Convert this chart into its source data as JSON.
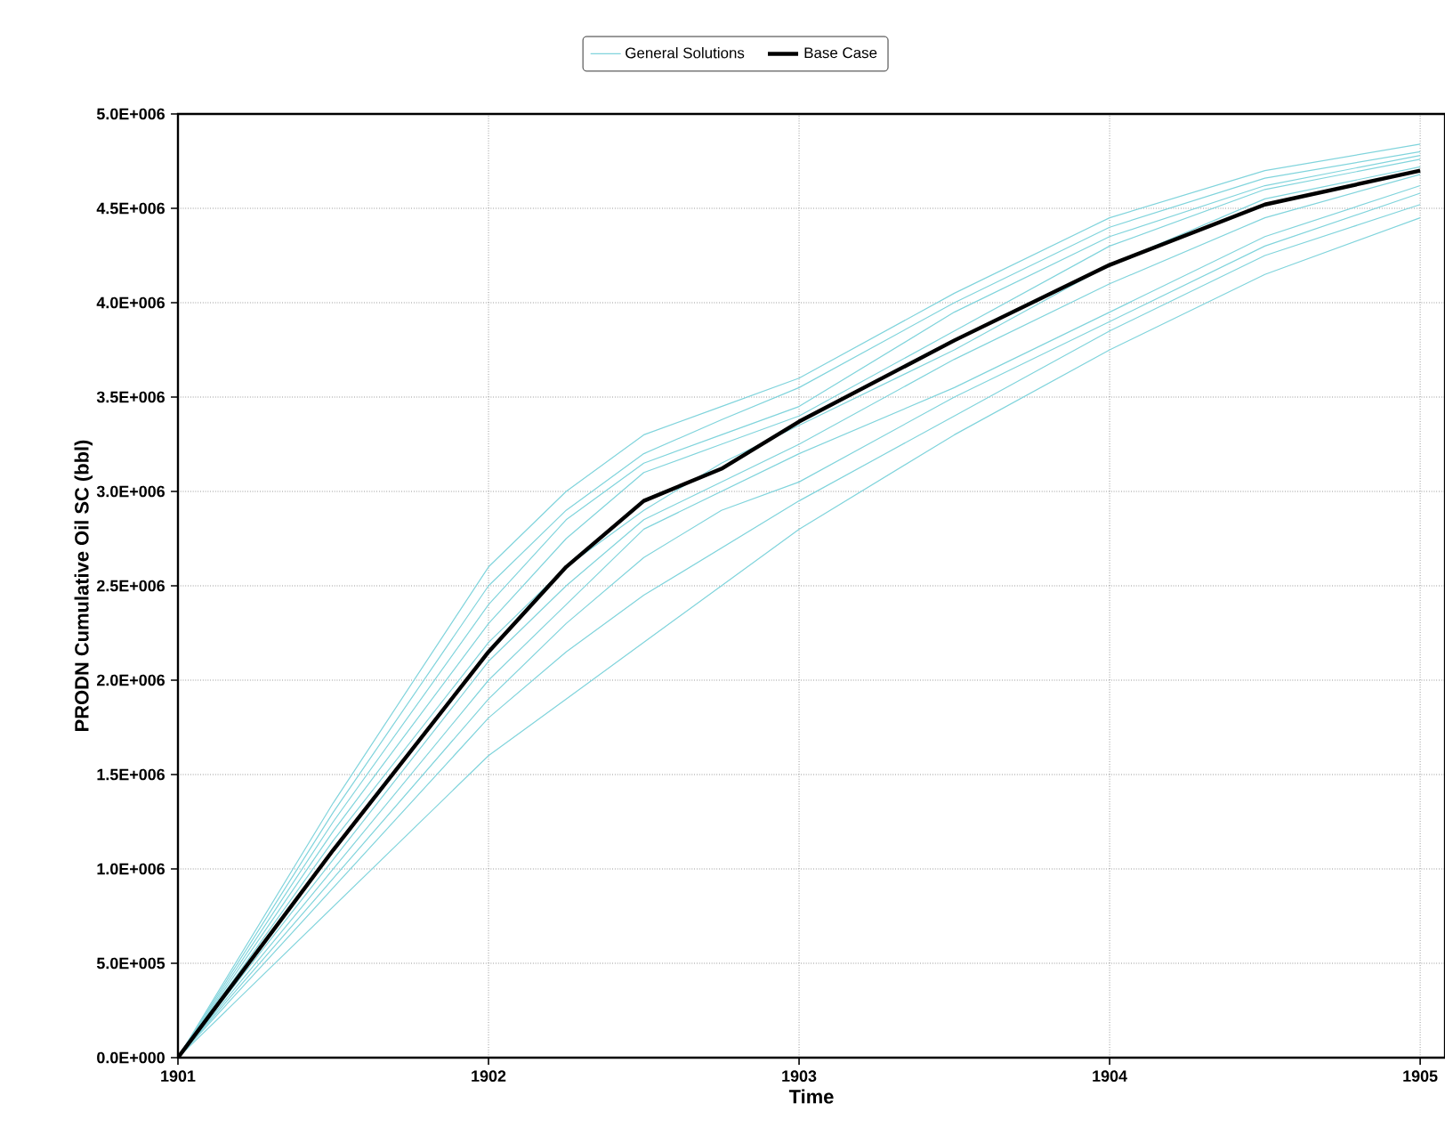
{
  "chart_data": {
    "type": "line",
    "xlabel": "Time",
    "ylabel": "PRODN Cumulative Oil SC (bbl)",
    "x": [
      1901,
      1901.5,
      1902,
      1902.25,
      1902.5,
      1902.75,
      1903,
      1903.5,
      1904,
      1904.5,
      1905
    ],
    "xlim": [
      1901,
      1905.08
    ],
    "xticks": [
      1901,
      1902,
      1903,
      1904,
      1905
    ],
    "ylim": [
      0,
      5000000
    ],
    "yticks": [
      {
        "value": 0,
        "label": "0.0E+000"
      },
      {
        "value": 500000,
        "label": "5.0E+005"
      },
      {
        "value": 1000000,
        "label": "1.0E+006"
      },
      {
        "value": 1500000,
        "label": "1.5E+006"
      },
      {
        "value": 2000000,
        "label": "2.0E+006"
      },
      {
        "value": 2500000,
        "label": "2.5E+006"
      },
      {
        "value": 3000000,
        "label": "3.0E+006"
      },
      {
        "value": 3500000,
        "label": "3.5E+006"
      },
      {
        "value": 4000000,
        "label": "4.0E+006"
      },
      {
        "value": 4500000,
        "label": "4.5E+006"
      },
      {
        "value": 5000000,
        "label": "5.0E+006"
      }
    ],
    "grid": true,
    "legend": "top",
    "line_style": "solid",
    "series": [
      {
        "name": "General Solutions",
        "color": "#80d4dc",
        "values": [
          0,
          1350000,
          2600000,
          3000000,
          3300000,
          3450000,
          3600000,
          4050000,
          4450000,
          4700000,
          4840000
        ]
      },
      {
        "color": "#80d4dc",
        "values": [
          0,
          1300000,
          2500000,
          2900000,
          3200000,
          3380000,
          3550000,
          4000000,
          4400000,
          4660000,
          4800000
        ]
      },
      {
        "color": "#80d4dc",
        "values": [
          0,
          1250000,
          2400000,
          2850000,
          3150000,
          3300000,
          3450000,
          3950000,
          4350000,
          4620000,
          4780000
        ]
      },
      {
        "color": "#80d4dc",
        "values": [
          0,
          1200000,
          2300000,
          2750000,
          3100000,
          3250000,
          3400000,
          3850000,
          4300000,
          4600000,
          4760000
        ]
      },
      {
        "color": "#80d4dc",
        "values": [
          0,
          1150000,
          2200000,
          2600000,
          2900000,
          3150000,
          3350000,
          3750000,
          4200000,
          4550000,
          4720000
        ]
      },
      {
        "color": "#80d4dc",
        "values": [
          0,
          1050000,
          2100000,
          2500000,
          2850000,
          3050000,
          3250000,
          3700000,
          4100000,
          4450000,
          4680000
        ]
      },
      {
        "color": "#80d4dc",
        "values": [
          0,
          1000000,
          2000000,
          2400000,
          2800000,
          3000000,
          3200000,
          3550000,
          3950000,
          4350000,
          4620000
        ]
      },
      {
        "color": "#80d4dc",
        "values": [
          0,
          950000,
          1900000,
          2300000,
          2650000,
          2900000,
          3050000,
          3500000,
          3900000,
          4300000,
          4580000
        ]
      },
      {
        "color": "#80d4dc",
        "values": [
          0,
          900000,
          1800000,
          2150000,
          2450000,
          2700000,
          2950000,
          3400000,
          3850000,
          4250000,
          4520000
        ]
      },
      {
        "color": "#80d4dc",
        "values": [
          0,
          800000,
          1600000,
          1900000,
          2200000,
          2500000,
          2800000,
          3300000,
          3750000,
          4150000,
          4450000
        ]
      },
      {
        "name": "Base Case",
        "color": "#000000",
        "values": [
          0,
          1100000,
          2150000,
          2600000,
          2950000,
          3120000,
          3370000,
          3800000,
          4200000,
          4520000,
          4700000
        ]
      }
    ]
  }
}
